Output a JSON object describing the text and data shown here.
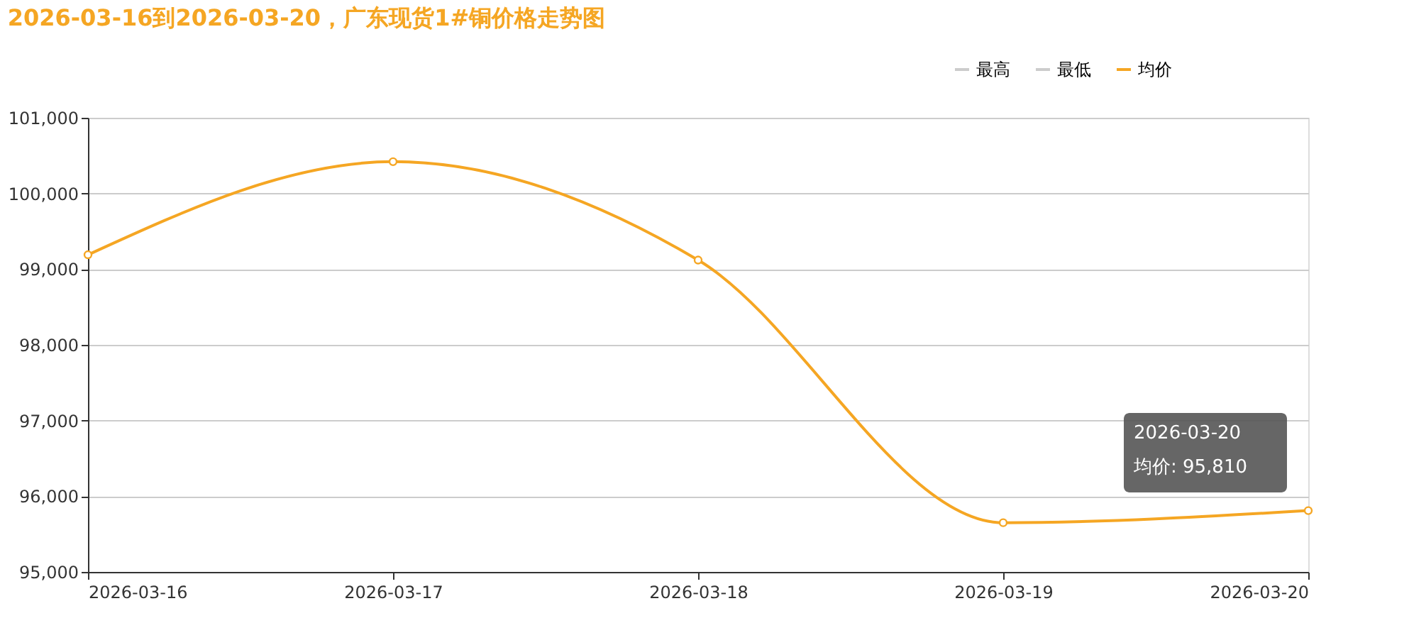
{
  "chart_data": {
    "type": "line",
    "title": "2026-03-16到2026-03-20，广东现货1#铜价格走势图",
    "categories": [
      "2026-03-16",
      "2026-03-17",
      "2026-03-18",
      "2026-03-19",
      "2026-03-20"
    ],
    "series": [
      {
        "name": "最高",
        "color": "#cccccc",
        "values": [
          null,
          null,
          null,
          null,
          null
        ]
      },
      {
        "name": "最低",
        "color": "#cccccc",
        "values": [
          null,
          null,
          null,
          null,
          null
        ]
      },
      {
        "name": "均价",
        "color": "#f5a623",
        "values": [
          99190,
          100420,
          99120,
          95650,
          95810
        ]
      }
    ],
    "ylim": [
      95000,
      101000
    ],
    "yticks": [
      {
        "value": 95000,
        "label": "95,000"
      },
      {
        "value": 96000,
        "label": "96,000"
      },
      {
        "value": 97000,
        "label": "97,000"
      },
      {
        "value": 98000,
        "label": "98,000"
      },
      {
        "value": 99000,
        "label": "99,000"
      },
      {
        "value": 100000,
        "label": "100,000"
      },
      {
        "value": 101000,
        "label": "101,000"
      }
    ],
    "grid": "y",
    "legend": "top right",
    "marker": "circle",
    "line_style": "solid",
    "annotations": [
      "2026-03-20",
      "均价: 95,810"
    ]
  }
}
